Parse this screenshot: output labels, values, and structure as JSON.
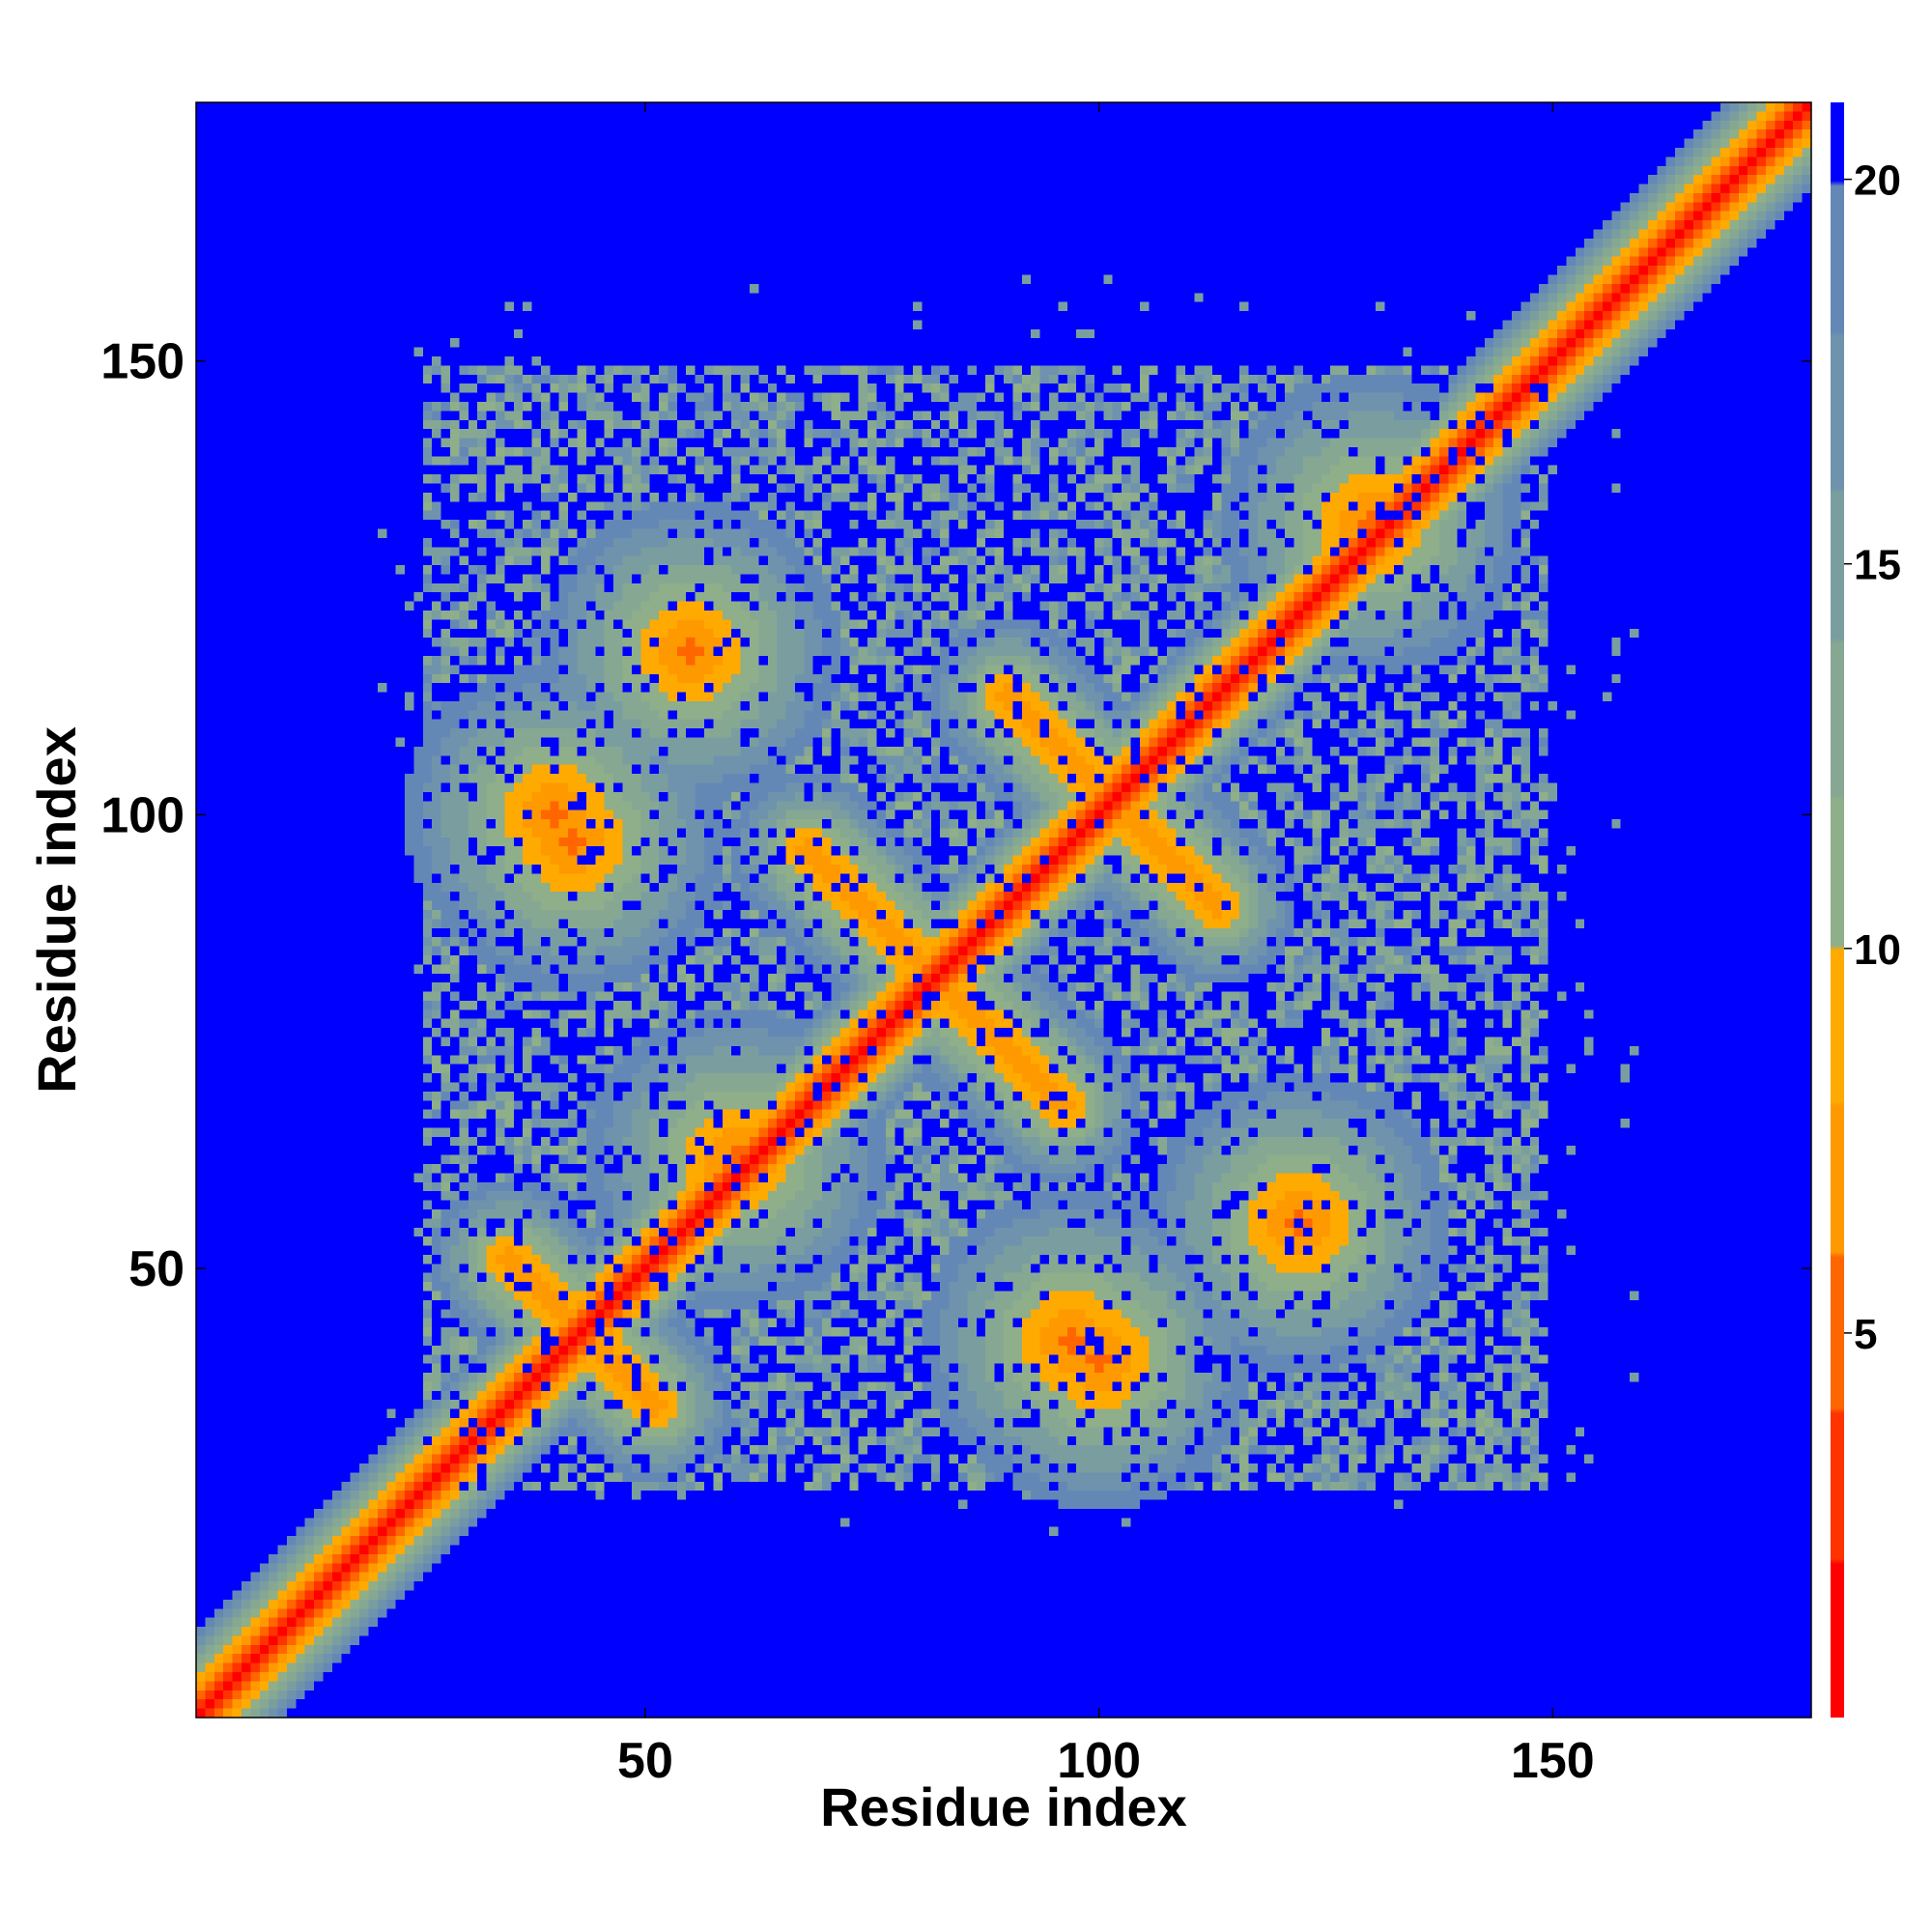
{
  "chart_data": {
    "type": "heatmap",
    "title": "",
    "xlabel": "Residue index",
    "ylabel": "Residue index",
    "xlim": [
      1,
      178
    ],
    "ylim": [
      1,
      178
    ],
    "xticks": [
      50,
      100,
      150
    ],
    "yticks": [
      50,
      100,
      150
    ],
    "colorbar": {
      "range": [
        0,
        21
      ],
      "ticks": [
        5,
        10,
        15,
        20
      ],
      "colors": [
        "#ff0000",
        "#ff3300",
        "#ff6600",
        "#ff9900",
        "#ffaa00",
        "#8fae8a",
        "#86a893",
        "#7a9ea0",
        "#6f93ad",
        "#6488b5",
        "#0000ff"
      ]
    },
    "value_description": "residue-residue distance map; values above 20 saturate to blue",
    "features": {
      "diagonal": {
        "from": [
          1,
          1
        ],
        "to": [
          178,
          178
        ]
      },
      "antidiagonal_contacts": [
        {
          "center": [
            82,
            82
          ],
          "from": [
            68,
            96
          ],
          "to": [
            96,
            68
          ]
        },
        {
          "center": [
            101,
            101
          ],
          "from": [
            90,
            113
          ],
          "to": [
            113,
            90
          ]
        },
        {
          "center": [
            43,
            43
          ],
          "from": [
            35,
            51
          ],
          "to": [
            51,
            35
          ]
        }
      ],
      "off_diagonal_contacts": [
        {
          "center": [
            55,
            118
          ]
        },
        {
          "center": [
            122,
            55
          ]
        },
        {
          "center": [
            40,
            100
          ]
        },
        {
          "center": [
            100,
            40
          ]
        },
        {
          "center": [
            60,
            62
          ]
        },
        {
          "center": [
            130,
            132
          ]
        },
        {
          "center": [
            97,
            42
          ]
        },
        {
          "center": [
            42,
            97
          ]
        }
      ]
    }
  }
}
